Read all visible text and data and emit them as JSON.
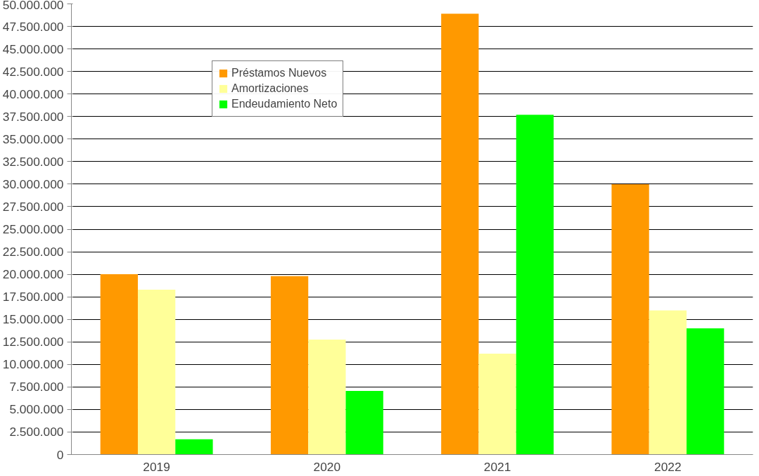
{
  "chart_data": {
    "type": "bar",
    "categories": [
      "2019",
      "2020",
      "2021",
      "2022"
    ],
    "series": [
      {
        "name": "Préstamos Nuevos",
        "color": "#ff9900",
        "values": [
          20000000,
          19800000,
          48900000,
          30000000
        ]
      },
      {
        "name": "Amortizaciones",
        "color": "#ffff99",
        "values": [
          18300000,
          12750000,
          11200000,
          16000000
        ]
      },
      {
        "name": "Endeudamiento Neto",
        "color": "#00ff00",
        "values": [
          1700000,
          7050000,
          37700000,
          14000000
        ]
      }
    ],
    "ylim": [
      0,
      50000000
    ],
    "yticks": [
      0,
      {
        "value": 2500000,
        "label": "2.500.000"
      },
      {
        "value": 5000000,
        "label": "5.000.000"
      },
      {
        "value": 7500000,
        "label": "7.500.000"
      },
      {
        "value": 10000000,
        "label": "10.000.000"
      },
      {
        "value": 12500000,
        "label": "12.500.000"
      },
      {
        "value": 15000000,
        "label": "15.000.000"
      },
      {
        "value": 17500000,
        "label": "17.500.000"
      },
      {
        "value": 20000000,
        "label": "20.000.000"
      },
      {
        "value": 22500000,
        "label": "22.500.000"
      },
      {
        "value": 25000000,
        "label": "25.000.000"
      },
      {
        "value": 27500000,
        "label": "27.500.000"
      },
      {
        "value": 30000000,
        "label": "30.000.000"
      },
      {
        "value": 32500000,
        "label": "32.500.000"
      },
      {
        "value": 35000000,
        "label": "35.000.000"
      },
      {
        "value": 37500000,
        "label": "37.500.000"
      },
      {
        "value": 40000000,
        "label": "40.000.000"
      },
      {
        "value": 42500000,
        "label": "42.500.000"
      },
      {
        "value": 45000000,
        "label": "45.000.000"
      },
      {
        "value": 47500000,
        "label": "47.500.000"
      },
      {
        "value": 50000000,
        "label": "50.000.000"
      }
    ],
    "grid": "y",
    "legend": "top left"
  }
}
